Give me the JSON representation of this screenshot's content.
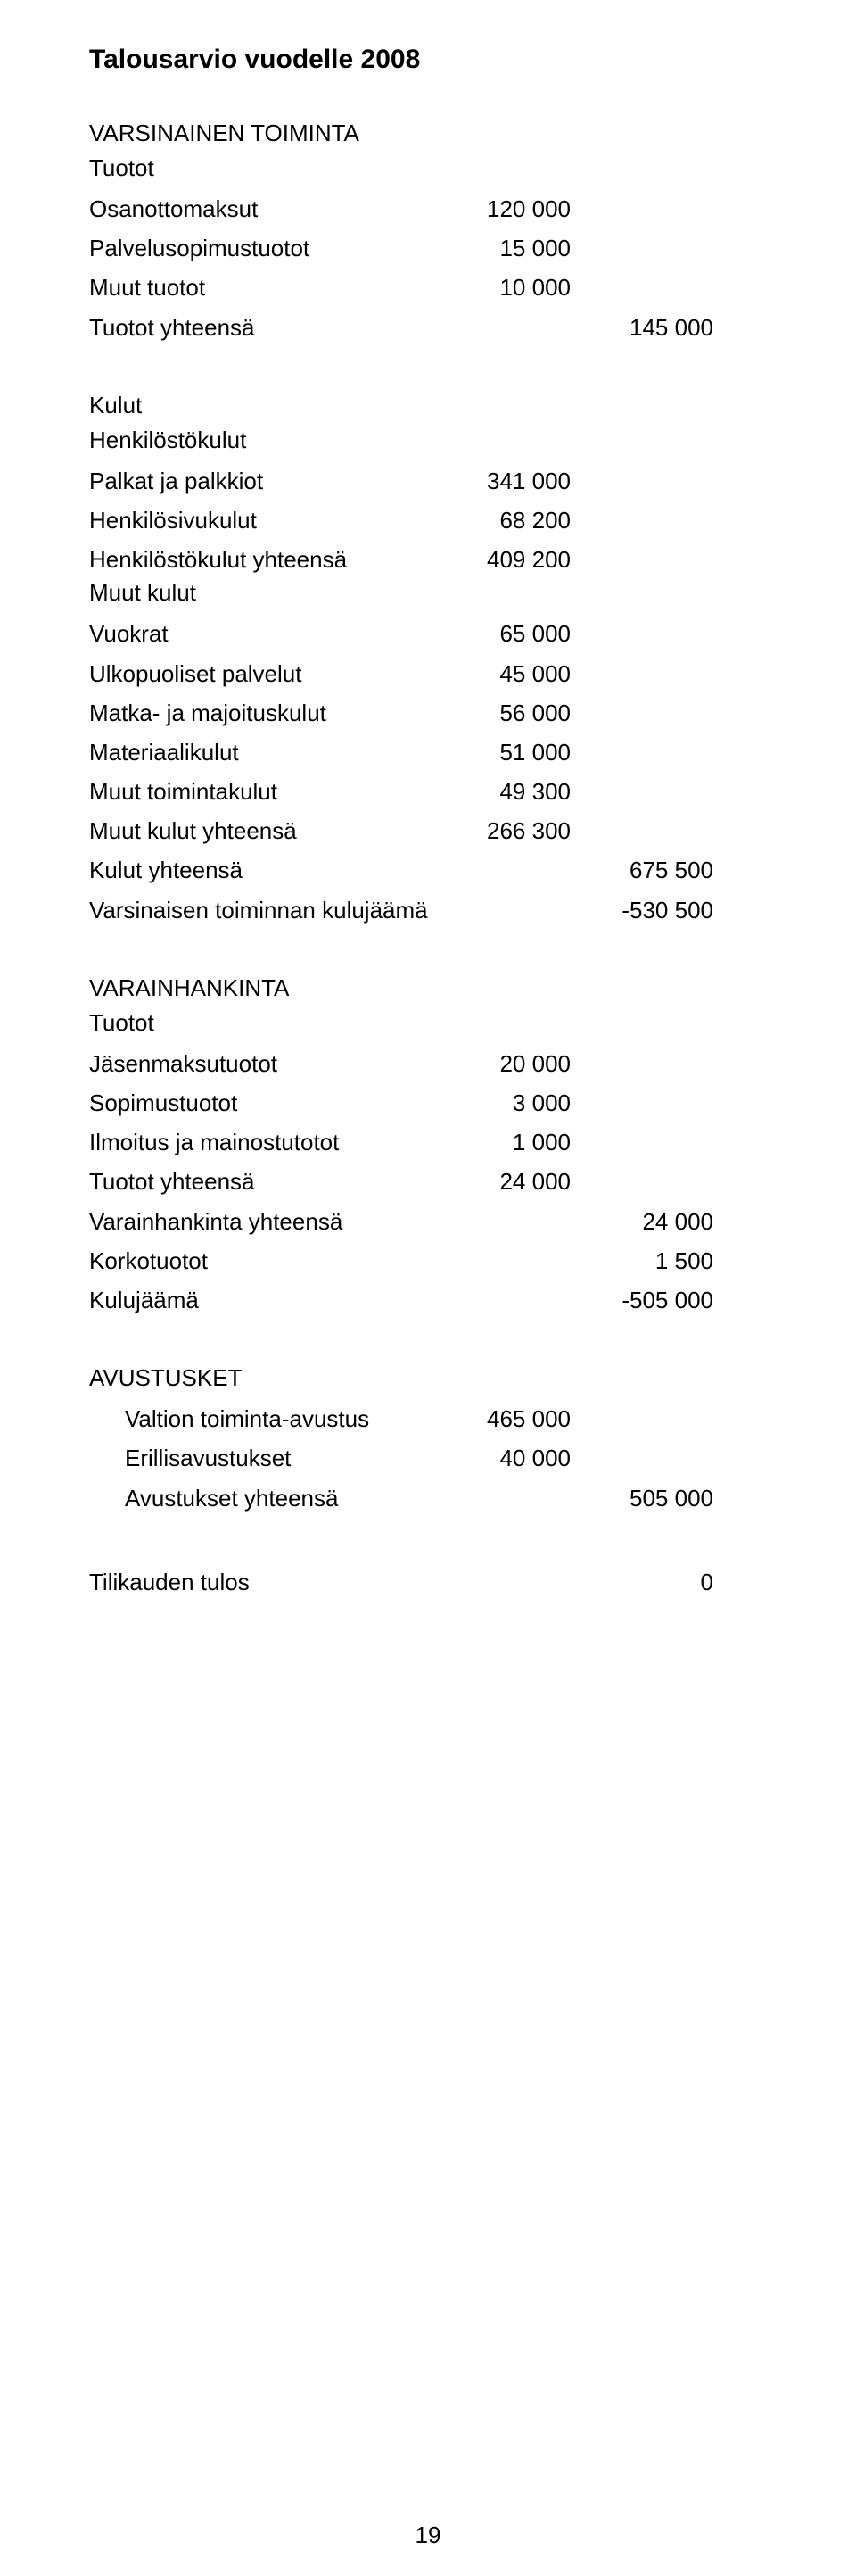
{
  "title": "Talousarvio vuodelle 2008",
  "sections": {
    "varsinainen": {
      "heading": "VARSINAINEN TOIMINTA",
      "tuotot": {
        "label": "Tuotot",
        "rows": [
          {
            "label": "Osanottomaksut",
            "col1": "120 000"
          },
          {
            "label": "Palvelusopimustuotot",
            "col1": "15 000"
          },
          {
            "label": "Muut tuotot",
            "col1": "10 000"
          }
        ],
        "total": {
          "label": "Tuotot yhteensä",
          "col2": "145 000"
        }
      },
      "kulut": {
        "label": "Kulut",
        "henkilosto": {
          "label": "Henkilöstökulut",
          "rows": [
            {
              "label": "Palkat ja palkkiot",
              "col1": "341 000"
            },
            {
              "label": "Henkilösivukulut",
              "col1": "68 200"
            }
          ],
          "total": {
            "label": "Henkilöstökulut yhteensä",
            "col1": "409 200"
          }
        },
        "muut": {
          "label": "Muut kulut",
          "rows": [
            {
              "label": "Vuokrat",
              "col1": "65 000"
            },
            {
              "label": "Ulkopuoliset palvelut",
              "col1": "45 000"
            },
            {
              "label": "Matka- ja majoituskulut",
              "col1": "56 000"
            },
            {
              "label": "Materiaalikulut",
              "col1": "51 000"
            },
            {
              "label": "Muut toimintakulut",
              "col1": "49 300"
            }
          ],
          "total": {
            "label": "Muut kulut yhteensä",
            "col1": "266 300"
          }
        },
        "kulut_total": {
          "label": "Kulut yhteensä",
          "col2": "675 500"
        }
      },
      "varsinaisen_result": {
        "label": "Varsinaisen toiminnan kulujäämä",
        "col2": "-530 500"
      }
    },
    "varainhankinta": {
      "heading": "VARAINHANKINTA",
      "tuotot": {
        "label": "Tuotot",
        "rows": [
          {
            "label": "Jäsenmaksutuotot",
            "col1": "20 000"
          },
          {
            "label": "Sopimustuotot",
            "col1": "3 000"
          },
          {
            "label": "Ilmoitus ja mainostutotot",
            "col1": "1 000"
          }
        ],
        "total": {
          "label": "Tuotot yhteensä",
          "col1": "24 000"
        }
      },
      "varainhankinta_total": {
        "label": "Varainhankinta yhteensä",
        "col2": "24 000"
      },
      "korko": {
        "label": "Korkotuotot",
        "col2": "1 500"
      },
      "kulujaama": {
        "label": "Kulujäämä",
        "col2": "-505 000"
      }
    },
    "avustukset": {
      "heading": "AVUSTUSKET",
      "rows": [
        {
          "label": "Valtion toiminta-avustus",
          "col1": "465 000"
        },
        {
          "label": "Erillisavustukset",
          "col1": "40 000"
        }
      ],
      "total": {
        "label": "Avustukset yhteensä",
        "col2": "505 000"
      }
    },
    "tilikausi": {
      "label": "Tilikauden tulos",
      "col2": "0"
    }
  },
  "page_number": "19"
}
